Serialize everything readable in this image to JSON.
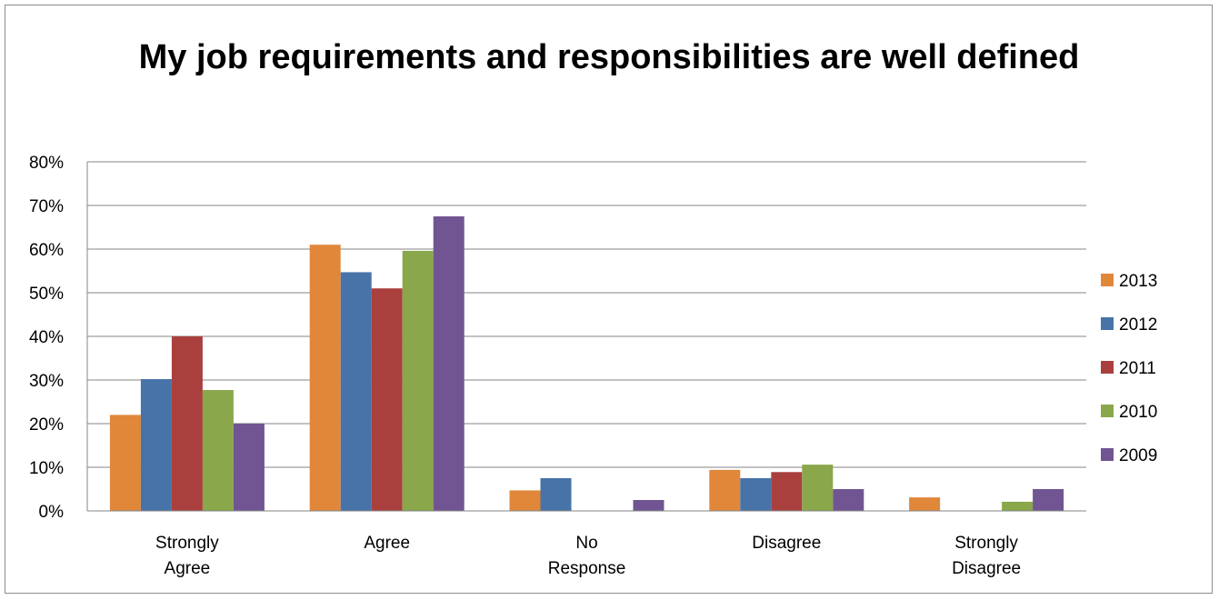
{
  "chart_data": {
    "type": "bar",
    "title": "My job requirements and responsibilities are well defined",
    "xlabel": "",
    "ylabel": "",
    "ylim": [
      0,
      0.8
    ],
    "y_ticks": [
      "0%",
      "10%",
      "20%",
      "30%",
      "40%",
      "50%",
      "60%",
      "70%",
      "80%"
    ],
    "categories": [
      [
        "Strongly",
        "Agree"
      ],
      [
        "Agree"
      ],
      [
        "No",
        "Response"
      ],
      [
        "Disagree"
      ],
      [
        "Strongly",
        "Disagree"
      ]
    ],
    "series": [
      {
        "name": "2013",
        "color": "#E0873A",
        "values": [
          0.22,
          0.61,
          0.047,
          0.094,
          0.031
        ]
      },
      {
        "name": "2012",
        "color": "#4873A9",
        "values": [
          0.302,
          0.547,
          0.075,
          0.075,
          0
        ]
      },
      {
        "name": "2011",
        "color": "#A9403E",
        "values": [
          0.4,
          0.51,
          0,
          0.089,
          0
        ]
      },
      {
        "name": "2010",
        "color": "#8AA74B",
        "values": [
          0.277,
          0.596,
          0,
          0.106,
          0.021
        ]
      },
      {
        "name": "2009",
        "color": "#715592",
        "values": [
          0.2,
          0.675,
          0.025,
          0.05,
          0.05
        ]
      }
    ],
    "grid": true,
    "legend_position": "right"
  }
}
